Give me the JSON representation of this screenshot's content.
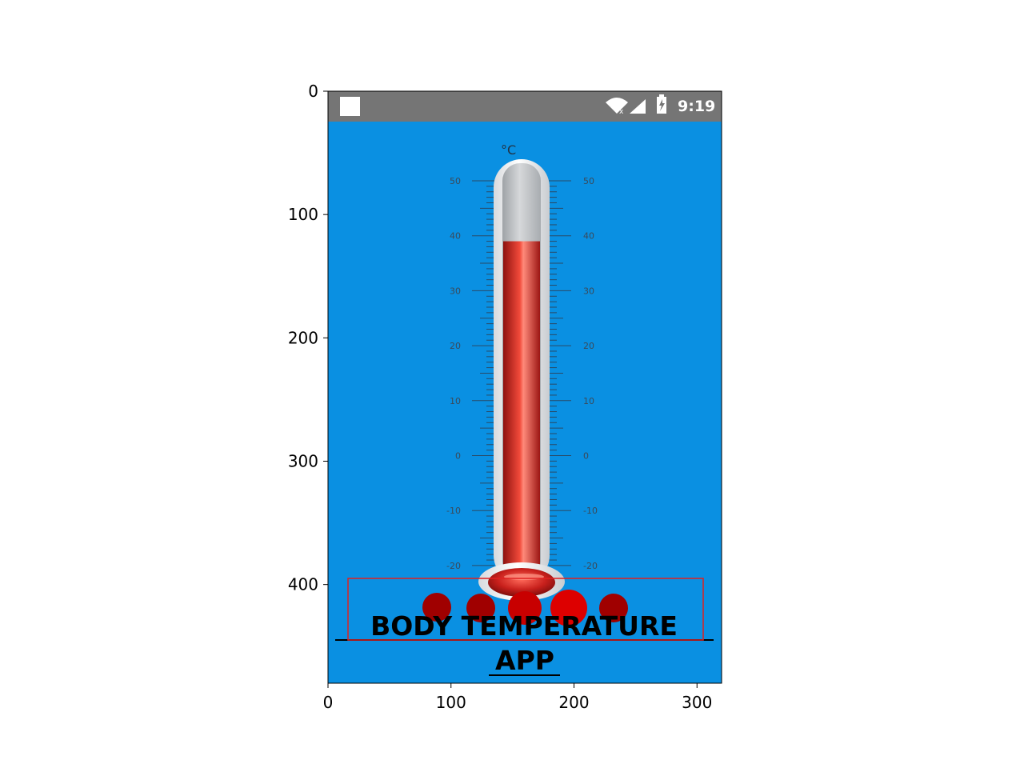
{
  "plot_axes": {
    "x_ticks": [
      "0",
      "100",
      "200",
      "300"
    ],
    "y_ticks": [
      "0",
      "100",
      "200",
      "300",
      "400"
    ]
  },
  "status_bar": {
    "time": "9:19",
    "icons": [
      "notification-square-icon",
      "wifi-icon",
      "signal-icon",
      "battery-charging-icon"
    ],
    "bg_color": "#757575"
  },
  "app": {
    "bg_color": "#0a90e2",
    "thermometer": {
      "unit": "°C",
      "scale_labels": [
        "50",
        "40",
        "30",
        "20",
        "10",
        "0",
        "-10",
        "-20"
      ],
      "mercury_color": "#c8201c",
      "reading_celsius": 39
    },
    "loading_dots_colors": [
      "#a00000",
      "#a00000",
      "#c80000",
      "#dd0000",
      "#a00000"
    ],
    "title_line1": "BODY TEMPERATURE",
    "title_line2": "APP"
  },
  "highlight_box_color": "#e02020"
}
